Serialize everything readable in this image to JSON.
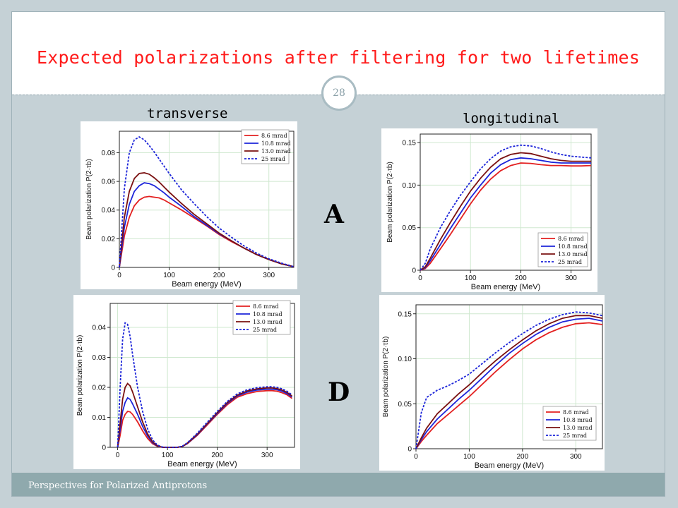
{
  "slide": {
    "title": "Expected polarizations after filtering for two lifetimes",
    "page_number": "28",
    "footer": "Perspectives for Polarized Antiprotons",
    "col_left_label": "transverse",
    "col_right_label": "longitudinal",
    "row_label_top": "A",
    "row_label_bottom": "D"
  },
  "colors": {
    "title": "#ff1a1a",
    "series": [
      "#e32020",
      "#1c24d9",
      "#7a1010",
      "#1c24d9"
    ]
  },
  "chart_data": [
    {
      "id": "A-transverse",
      "type": "line",
      "xlabel": "Beam energy (MeV)",
      "ylabel": "Beam polarization P(2·τb)",
      "xlim": [
        0,
        350
      ],
      "ylim": [
        0,
        0.095
      ],
      "xticks": [
        0,
        100,
        200,
        300
      ],
      "xtick_labels": [
        "0",
        "100",
        "200",
        "300"
      ],
      "yticks": [
        0,
        0.02,
        0.04,
        0.06,
        0.08
      ],
      "ytick_labels": [
        "0",
        "0.02",
        "0.04",
        "0.06",
        "0.08"
      ],
      "legend_position": "top-right",
      "grid": true,
      "x": [
        0,
        10,
        20,
        30,
        40,
        50,
        60,
        70,
        80,
        90,
        100,
        125,
        150,
        175,
        200,
        225,
        250,
        275,
        300,
        325,
        350
      ],
      "series": [
        {
          "name": "8.6 mrad",
          "style": "solid",
          "values": [
            0,
            0.022,
            0.035,
            0.043,
            0.047,
            0.049,
            0.0495,
            0.049,
            0.0485,
            0.047,
            0.045,
            0.04,
            0.0345,
            0.029,
            0.023,
            0.018,
            0.0135,
            0.009,
            0.0055,
            0.0025,
            0.0005
          ]
        },
        {
          "name": "10.8 mrad",
          "style": "solid",
          "values": [
            0,
            0.028,
            0.044,
            0.053,
            0.057,
            0.059,
            0.0585,
            0.057,
            0.0545,
            0.052,
            0.049,
            0.0425,
            0.0355,
            0.0295,
            0.0235,
            0.0185,
            0.0135,
            0.009,
            0.0055,
            0.0025,
            0.0005
          ]
        },
        {
          "name": "13.0 mrad",
          "style": "solid",
          "values": [
            0,
            0.035,
            0.053,
            0.062,
            0.0655,
            0.066,
            0.065,
            0.0625,
            0.0595,
            0.056,
            0.0525,
            0.0445,
            0.037,
            0.0305,
            0.024,
            0.0185,
            0.0135,
            0.009,
            0.0055,
            0.0025,
            0.0005
          ]
        },
        {
          "name": "25 mrad",
          "style": "dashed",
          "values": [
            0,
            0.055,
            0.08,
            0.089,
            0.091,
            0.089,
            0.085,
            0.0805,
            0.0755,
            0.0705,
            0.0655,
            0.054,
            0.0445,
            0.0355,
            0.0275,
            0.021,
            0.015,
            0.01,
            0.006,
            0.003,
            0.0005
          ]
        }
      ]
    },
    {
      "id": "A-longitudinal",
      "type": "line",
      "xlabel": "Beam energy (MeV)",
      "ylabel": "Beam polarization P(2·τb)",
      "xlim": [
        0,
        340
      ],
      "ylim": [
        0,
        0.16
      ],
      "xticks": [
        0,
        100,
        200,
        300
      ],
      "xtick_labels": [
        "0",
        "100",
        "200",
        "300"
      ],
      "yticks": [
        0,
        0.05,
        0.1,
        0.15
      ],
      "ytick_labels": [
        "0",
        "0.05",
        "0.10",
        "0.15"
      ],
      "legend_position": "bottom-right",
      "grid": true,
      "x": [
        0,
        10,
        20,
        40,
        60,
        80,
        100,
        120,
        140,
        160,
        180,
        200,
        220,
        240,
        260,
        280,
        300,
        320,
        340
      ],
      "series": [
        {
          "name": "8.6 mrad",
          "style": "solid",
          "values": [
            0,
            0.002,
            0.008,
            0.025,
            0.042,
            0.06,
            0.078,
            0.094,
            0.107,
            0.117,
            0.123,
            0.126,
            0.1255,
            0.124,
            0.123,
            0.123,
            0.1225,
            0.1225,
            0.123
          ]
        },
        {
          "name": "10.8 mrad",
          "style": "solid",
          "values": [
            0,
            0.003,
            0.011,
            0.03,
            0.049,
            0.067,
            0.085,
            0.1,
            0.114,
            0.124,
            0.13,
            0.132,
            0.131,
            0.129,
            0.127,
            0.126,
            0.126,
            0.126,
            0.126
          ]
        },
        {
          "name": "13.0 mrad",
          "style": "solid",
          "values": [
            0,
            0.004,
            0.014,
            0.036,
            0.056,
            0.075,
            0.093,
            0.108,
            0.121,
            0.131,
            0.136,
            0.138,
            0.137,
            0.134,
            0.131,
            0.129,
            0.128,
            0.128,
            0.128
          ]
        },
        {
          "name": "25 mrad",
          "style": "dashed",
          "values": [
            0,
            0.008,
            0.025,
            0.05,
            0.07,
            0.088,
            0.104,
            0.119,
            0.131,
            0.14,
            0.145,
            0.147,
            0.146,
            0.143,
            0.139,
            0.136,
            0.134,
            0.133,
            0.132
          ]
        }
      ]
    },
    {
      "id": "D-transverse",
      "type": "line",
      "xlabel": "Beam energy (MeV)",
      "ylabel": "Beam polarization P(2·τb)",
      "xlim": [
        -15,
        355
      ],
      "ylim": [
        0,
        0.048
      ],
      "xticks": [
        0,
        100,
        200,
        300
      ],
      "xtick_labels": [
        "0",
        "100",
        "200",
        "300"
      ],
      "yticks": [
        0,
        0.01,
        0.02,
        0.03,
        0.04
      ],
      "ytick_labels": [
        "0",
        "0.01",
        "0.02",
        "0.03",
        "0.04"
      ],
      "legend_position": "top-right",
      "grid": true,
      "x": [
        0,
        5,
        10,
        15,
        20,
        25,
        30,
        40,
        50,
        60,
        70,
        80,
        90,
        100,
        110,
        120,
        130,
        140,
        160,
        180,
        200,
        220,
        240,
        260,
        280,
        300,
        310,
        320,
        330,
        340,
        350
      ],
      "series": [
        {
          "name": "8.6 mrad",
          "style": "solid",
          "values": [
            0,
            0.004,
            0.009,
            0.011,
            0.012,
            0.0118,
            0.011,
            0.0085,
            0.0055,
            0.003,
            0.0012,
            0.0003,
            0,
            0,
            0,
            0,
            0.0003,
            0.0012,
            0.004,
            0.0075,
            0.011,
            0.0142,
            0.0167,
            0.0179,
            0.0186,
            0.0189,
            0.0189,
            0.0187,
            0.0182,
            0.0175,
            0.0163
          ]
        },
        {
          "name": "10.8 mrad",
          "style": "solid",
          "values": [
            0,
            0.006,
            0.012,
            0.015,
            0.0165,
            0.016,
            0.0145,
            0.011,
            0.007,
            0.0038,
            0.0015,
            0.0004,
            0,
            0,
            0,
            0,
            0.0003,
            0.0013,
            0.0042,
            0.0078,
            0.0113,
            0.0146,
            0.0171,
            0.0184,
            0.0191,
            0.0194,
            0.0194,
            0.0192,
            0.0187,
            0.0179,
            0.0168
          ]
        },
        {
          "name": "13.0 mrad",
          "style": "solid",
          "values": [
            0,
            0.008,
            0.016,
            0.02,
            0.0213,
            0.0205,
            0.0185,
            0.0135,
            0.0085,
            0.0045,
            0.0018,
            0.0005,
            0,
            0,
            0,
            0,
            0.0003,
            0.0014,
            0.0044,
            0.008,
            0.0116,
            0.0149,
            0.0174,
            0.0188,
            0.0195,
            0.0198,
            0.0198,
            0.0196,
            0.0191,
            0.0183,
            0.0171
          ]
        },
        {
          "name": "25 mrad",
          "style": "dashed",
          "values": [
            0,
            0.02,
            0.036,
            0.0415,
            0.041,
            0.037,
            0.031,
            0.02,
            0.012,
            0.0062,
            0.0025,
            0.0007,
            0.0001,
            0,
            0,
            0,
            0.0004,
            0.0015,
            0.0047,
            0.0084,
            0.012,
            0.0153,
            0.0178,
            0.0192,
            0.0199,
            0.0202,
            0.0202,
            0.02,
            0.0195,
            0.0187,
            0.0175
          ]
        }
      ]
    },
    {
      "id": "D-longitudinal",
      "type": "line",
      "xlabel": "Beam energy (MeV)",
      "ylabel": "Beam polarization P(2·τb)",
      "xlim": [
        0,
        350
      ],
      "ylim": [
        0,
        0.16
      ],
      "xticks": [
        0,
        100,
        200,
        300
      ],
      "xtick_labels": [
        "0",
        "100",
        "200",
        "300"
      ],
      "yticks": [
        0,
        0.05,
        0.1,
        0.15
      ],
      "ytick_labels": [
        "0",
        "0.05",
        "0.10",
        "0.15"
      ],
      "legend_position": "bottom-right",
      "grid": true,
      "x": [
        0,
        10,
        20,
        40,
        60,
        80,
        100,
        125,
        150,
        175,
        200,
        225,
        250,
        275,
        300,
        325,
        350
      ],
      "series": [
        {
          "name": "8.6  mrad",
          "style": "solid",
          "values": [
            0,
            0.008,
            0.015,
            0.028,
            0.038,
            0.048,
            0.058,
            0.072,
            0.086,
            0.099,
            0.111,
            0.121,
            0.129,
            0.135,
            0.139,
            0.14,
            0.138
          ]
        },
        {
          "name": "10.8  mrad",
          "style": "solid",
          "values": [
            0,
            0.01,
            0.019,
            0.033,
            0.044,
            0.055,
            0.065,
            0.079,
            0.093,
            0.106,
            0.117,
            0.127,
            0.135,
            0.141,
            0.144,
            0.145,
            0.142
          ]
        },
        {
          "name": "13.0  mrad",
          "style": "solid",
          "values": [
            0,
            0.012,
            0.023,
            0.039,
            0.05,
            0.061,
            0.071,
            0.085,
            0.098,
            0.11,
            0.121,
            0.131,
            0.139,
            0.145,
            0.148,
            0.148,
            0.145
          ]
        },
        {
          "name": "25  mrad",
          "style": "dashed",
          "values": [
            0,
            0.04,
            0.057,
            0.065,
            0.07,
            0.076,
            0.083,
            0.095,
            0.107,
            0.118,
            0.128,
            0.137,
            0.144,
            0.149,
            0.152,
            0.151,
            0.148
          ]
        }
      ]
    }
  ]
}
